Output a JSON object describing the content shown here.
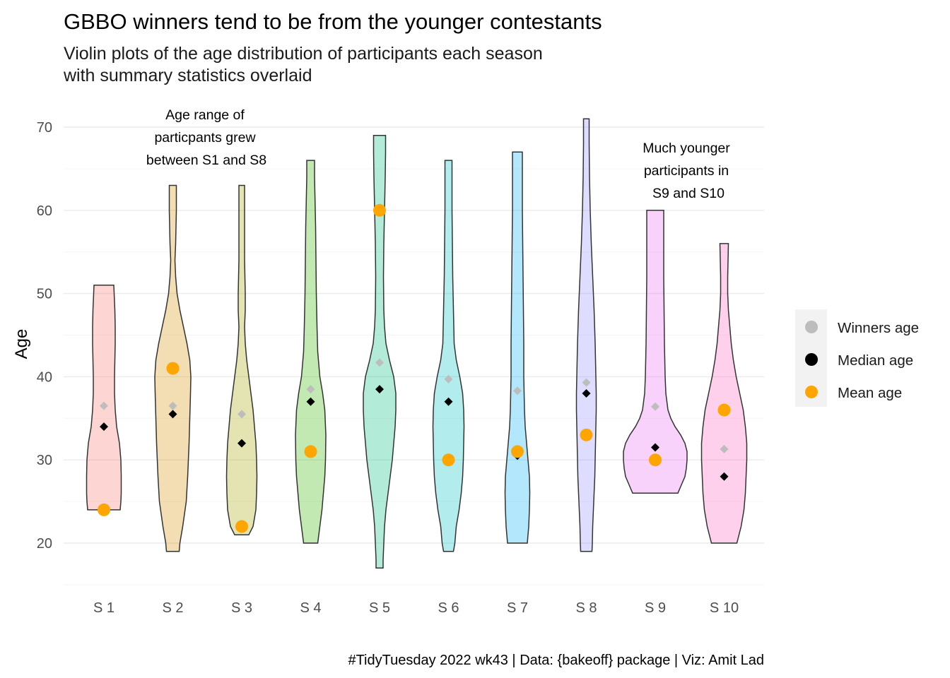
{
  "title": "GBBO winners tend to be from the younger contestants",
  "subtitle_lines": [
    "Violin plots of the age distribution of participants each season",
    "with summary statistics overlaid"
  ],
  "caption": "#TidyTuesday 2022 wk43 | Data: {bakeoff} package | Viz: Amit Lad",
  "annotations": [
    {
      "lines": [
        "Age range of",
        "particpants grew",
        "between S1 and S8"
      ]
    },
    {
      "lines": [
        "Much younger",
        "participants in",
        "S9 and S10"
      ]
    }
  ],
  "legend": {
    "items": [
      {
        "label": "Winners age",
        "color": "#bdbdbd"
      },
      {
        "label": "Median age",
        "color": "#000000"
      },
      {
        "label": "Mean age",
        "color": "#ffa500"
      }
    ]
  },
  "chart_data": {
    "type": "violin",
    "xlabel": "",
    "ylabel": "Age",
    "ylim": [
      15,
      71
    ],
    "yticks": [
      20,
      30,
      40,
      50,
      60,
      70
    ],
    "grid": true,
    "legend_position": "right",
    "categories": [
      "S 1",
      "S 2",
      "S 3",
      "S 4",
      "S 5",
      "S 6",
      "S 7",
      "S 8",
      "S 9",
      "S 10"
    ],
    "series": [
      {
        "name": "Winners age",
        "values": [
          36.5,
          36.5,
          35.5,
          38.5,
          41.7,
          39.7,
          38.3,
          39.3,
          36.4,
          31.3
        ]
      },
      {
        "name": "Median age",
        "values": [
          34,
          35.5,
          32,
          37,
          38.5,
          37,
          30.5,
          38,
          31.5,
          28
        ]
      },
      {
        "name": "Mean age",
        "values": [
          24,
          41,
          22,
          31,
          60,
          30,
          31,
          33,
          30,
          36
        ]
      }
    ],
    "violin_range": [
      [
        24,
        51
      ],
      [
        19,
        63
      ],
      [
        21,
        63
      ],
      [
        20,
        66
      ],
      [
        17,
        69
      ],
      [
        19,
        66
      ],
      [
        20,
        67
      ],
      [
        19,
        71
      ],
      [
        26,
        60
      ],
      [
        20,
        56
      ]
    ],
    "violin_fills": [
      "#F8766D",
      "#D89000",
      "#A3A500",
      "#39B600",
      "#00BF7D",
      "#00BFC4",
      "#00B0F6",
      "#9590FF",
      "#E76BF3",
      "#FF62BC"
    ]
  }
}
